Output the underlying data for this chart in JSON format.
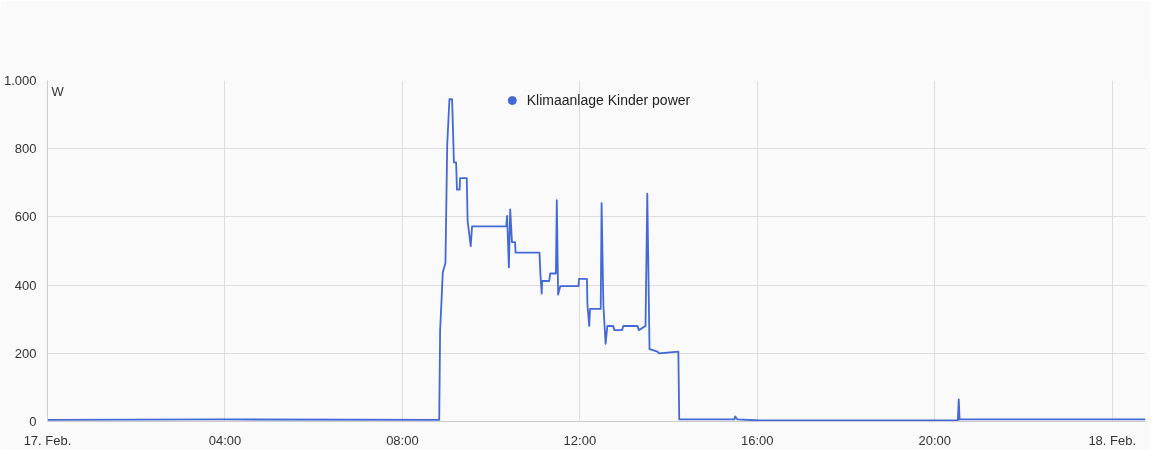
{
  "chart_data": {
    "type": "line",
    "ylabel": "W",
    "legend": "top",
    "series": [
      {
        "name": "Klimaanlage Kinder power",
        "color": "#4269d6",
        "x": [
          0,
          4,
          8.83,
          8.85,
          8.88,
          8.91,
          8.97,
          9.01,
          9.06,
          9.12,
          9.15,
          9.16,
          9.21,
          9.23,
          9.29,
          9.3,
          9.45,
          9.47,
          9.54,
          9.57,
          10.34,
          10.36,
          10.4,
          10.43,
          10.47,
          10.54,
          10.55,
          11.09,
          11.11,
          11.14,
          11.15,
          11.31,
          11.33,
          11.46,
          11.48,
          11.51,
          11.56,
          11.97,
          11.98,
          12.16,
          12.17,
          12.21,
          12.23,
          12.47,
          12.49,
          12.53,
          12.58,
          12.62,
          12.75,
          12.78,
          12.95,
          12.98,
          13.3,
          13.33,
          13.48,
          13.52,
          13.57,
          13.75,
          13.78,
          14.22,
          14.24,
          15.48,
          15.5,
          15.55,
          16.07,
          20.52,
          20.54,
          20.56,
          24.75
        ],
        "values": [
          5,
          6,
          5,
          268,
          350,
          437,
          465,
          812,
          945,
          945,
          812,
          760,
          760,
          680,
          680,
          714,
          714,
          588,
          514,
          572,
          572,
          603,
          452,
          622,
          526,
          526,
          495,
          495,
          434,
          375,
          412,
          412,
          434,
          434,
          649,
          372,
          397,
          397,
          418,
          418,
          345,
          280,
          330,
          330,
          640,
          341,
          228,
          280,
          280,
          268,
          268,
          280,
          280,
          268,
          280,
          668,
          212,
          205,
          200,
          205,
          6,
          6,
          15,
          6,
          3,
          3,
          65,
          6,
          6
        ]
      }
    ],
    "xlim": [
      0,
      24.75
    ],
    "xticks": [
      {
        "value": 0,
        "label": "17. Feb."
      },
      {
        "value": 4,
        "label": "04:00"
      },
      {
        "value": 8,
        "label": "08:00"
      },
      {
        "value": 12,
        "label": "12:00"
      },
      {
        "value": 16,
        "label": "16:00"
      },
      {
        "value": 20,
        "label": "20:00"
      },
      {
        "value": 24,
        "label": "18. Feb."
      }
    ],
    "ylim": [
      0,
      1000
    ],
    "yticks": [
      0,
      200,
      400,
      600,
      800,
      {
        "value": 1000,
        "label": "1.000"
      }
    ],
    "grid": true
  }
}
